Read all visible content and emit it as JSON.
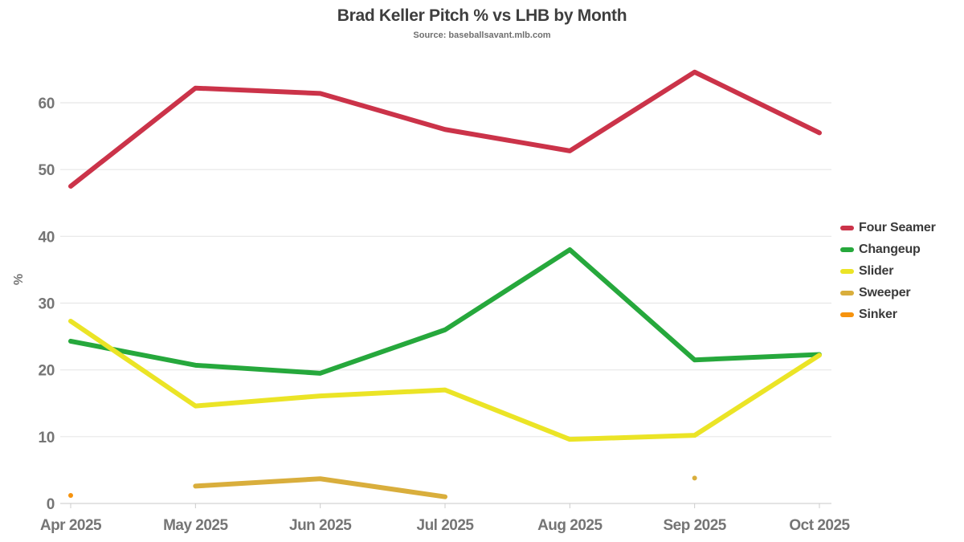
{
  "title": "Brad Keller Pitch % vs LHB by Month",
  "subtitle": "Source: baseballsavant.mlb.com",
  "chart_data": {
    "type": "line",
    "x": [
      "Apr 2025",
      "May 2025",
      "Jun 2025",
      "Jul 2025",
      "Aug 2025",
      "Sep 2025",
      "Oct 2025"
    ],
    "xlabel": "",
    "ylabel": "%",
    "ylim": [
      0,
      66
    ],
    "yticks": [
      0,
      10,
      20,
      30,
      40,
      50,
      60
    ],
    "grid": true,
    "legend_position": "right",
    "series": [
      {
        "name": "Four Seamer",
        "color": "#CB3349",
        "values": [
          47.5,
          62.2,
          61.4,
          56.0,
          52.8,
          64.6,
          55.5
        ]
      },
      {
        "name": "Changeup",
        "color": "#26A83C",
        "values": [
          24.3,
          20.7,
          19.5,
          26.0,
          38.0,
          21.5,
          22.3
        ]
      },
      {
        "name": "Slider",
        "color": "#EBE426",
        "values": [
          27.3,
          14.6,
          16.1,
          17.0,
          9.6,
          10.2,
          22.2
        ]
      },
      {
        "name": "Sweeper",
        "color": "#D9AE3C",
        "values": [
          null,
          2.6,
          3.7,
          1.0,
          null,
          3.8,
          null
        ]
      },
      {
        "name": "Sinker",
        "color": "#F6930E",
        "values": [
          1.2,
          null,
          null,
          null,
          null,
          null,
          null
        ]
      }
    ]
  },
  "style_colors": {
    "title": "#3e3e3e",
    "subtitle": "#6f6f6f",
    "axis_text": "#757575",
    "gridline": "#e7e7e7",
    "baseline": "#d4d4d4",
    "tick_mark": "#cccccc"
  }
}
